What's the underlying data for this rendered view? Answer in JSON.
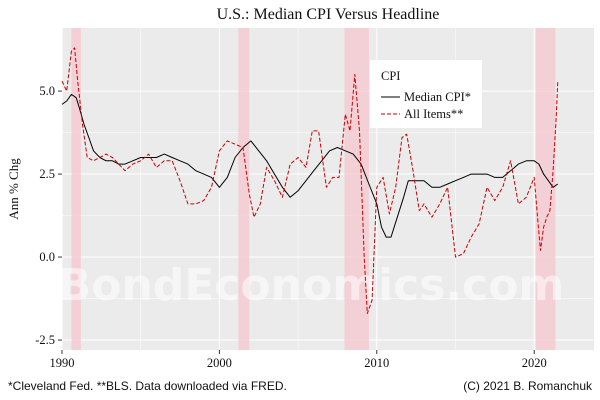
{
  "chart_data": {
    "type": "line",
    "title": "U.S.: Median CPI Versus Headline",
    "ylabel": "Ann % Chg",
    "xlabel": "",
    "xlim": [
      1990.0,
      2023.8
    ],
    "ylim": [
      -2.8,
      6.9
    ],
    "x_ticks": [
      1990,
      2000,
      2010,
      2020
    ],
    "x_tick_labels": [
      "1990",
      "2000",
      "2010",
      "2020"
    ],
    "y_ticks": [
      -2.5,
      0.0,
      2.5,
      5.0
    ],
    "y_tick_labels": [
      "-2.5",
      "0.0",
      "2.5",
      "5.0"
    ],
    "grid": true,
    "legend": {
      "title": "CPI",
      "position": "top-right",
      "entries": [
        {
          "label": "Median CPI*",
          "series": 0
        },
        {
          "label": "All Items**",
          "series": 1
        }
      ]
    },
    "recessions": [
      [
        1990.6,
        1991.2
      ],
      [
        2001.2,
        2001.9
      ],
      [
        2007.95,
        2009.5
      ],
      [
        2020.1,
        2021.35
      ]
    ],
    "series": [
      {
        "name": "Median CPI*",
        "color": "#000000",
        "dash": "solid",
        "x": [
          1990.0,
          1990.3,
          1990.6,
          1990.9,
          1991.1,
          1991.4,
          1991.7,
          1992.0,
          1992.4,
          1992.8,
          1993.2,
          1993.6,
          1994.0,
          1994.5,
          1995.0,
          1995.5,
          1996.0,
          1996.5,
          1997.0,
          1997.5,
          1998.0,
          1998.5,
          1999.0,
          1999.5,
          2000.0,
          2000.5,
          2001.0,
          2001.5,
          2002.0,
          2002.5,
          2003.0,
          2003.5,
          2004.0,
          2004.5,
          2005.0,
          2005.5,
          2006.0,
          2006.5,
          2007.0,
          2007.5,
          2008.0,
          2008.5,
          2009.0,
          2009.5,
          2010.0,
          2010.3,
          2010.6,
          2010.9,
          2011.3,
          2011.7,
          2012.0,
          2012.5,
          2013.0,
          2013.5,
          2014.0,
          2014.5,
          2015.0,
          2015.5,
          2016.0,
          2016.5,
          2017.0,
          2017.5,
          2018.0,
          2018.5,
          2019.0,
          2019.5,
          2020.0,
          2020.3,
          2020.6,
          2020.9,
          2021.2,
          2021.5
        ],
        "y": [
          4.6,
          4.7,
          4.9,
          4.8,
          4.5,
          4.0,
          3.6,
          3.2,
          3.0,
          2.9,
          2.9,
          2.8,
          2.8,
          2.9,
          3.0,
          3.0,
          3.0,
          3.1,
          3.0,
          2.9,
          2.8,
          2.6,
          2.5,
          2.4,
          2.1,
          2.4,
          3.0,
          3.3,
          3.5,
          3.2,
          2.9,
          2.5,
          2.1,
          1.8,
          2.0,
          2.3,
          2.6,
          2.9,
          3.2,
          3.3,
          3.2,
          3.1,
          2.8,
          2.2,
          1.6,
          0.9,
          0.6,
          0.6,
          1.2,
          1.8,
          2.3,
          2.3,
          2.3,
          2.1,
          2.1,
          2.2,
          2.3,
          2.4,
          2.5,
          2.5,
          2.5,
          2.4,
          2.4,
          2.6,
          2.8,
          2.9,
          2.9,
          2.8,
          2.5,
          2.3,
          2.1,
          2.2
        ]
      },
      {
        "name": "All Items**",
        "color": "#cc0000",
        "dash": "dashed",
        "x": [
          1990.0,
          1990.3,
          1990.6,
          1990.8,
          1991.0,
          1991.3,
          1991.6,
          1992.0,
          1992.4,
          1992.8,
          1993.2,
          1993.6,
          1994.0,
          1994.5,
          1995.0,
          1995.5,
          1996.0,
          1996.5,
          1997.0,
          1997.5,
          1998.0,
          1998.5,
          1999.0,
          1999.5,
          2000.0,
          2000.5,
          2001.0,
          2001.5,
          2001.9,
          2002.2,
          2002.6,
          2003.0,
          2003.5,
          2004.0,
          2004.5,
          2005.0,
          2005.5,
          2005.9,
          2006.3,
          2006.8,
          2007.2,
          2007.6,
          2008.0,
          2008.3,
          2008.6,
          2008.9,
          2009.2,
          2009.4,
          2009.7,
          2010.0,
          2010.4,
          2010.8,
          2011.2,
          2011.6,
          2011.9,
          2012.3,
          2012.7,
          2013.0,
          2013.5,
          2014.0,
          2014.5,
          2015.0,
          2015.5,
          2016.0,
          2016.5,
          2017.0,
          2017.5,
          2018.0,
          2018.5,
          2019.0,
          2019.5,
          2020.0,
          2020.25,
          2020.4,
          2020.6,
          2020.8,
          2021.0,
          2021.2,
          2021.4,
          2021.5
        ],
        "y": [
          5.3,
          5.0,
          6.2,
          6.3,
          5.3,
          4.0,
          3.0,
          2.9,
          3.0,
          3.1,
          3.0,
          2.8,
          2.6,
          2.8,
          2.9,
          3.1,
          2.7,
          2.9,
          2.9,
          2.3,
          1.6,
          1.6,
          1.7,
          2.1,
          3.2,
          3.5,
          3.4,
          3.3,
          1.9,
          1.2,
          1.6,
          2.7,
          2.3,
          1.8,
          2.8,
          3.0,
          2.7,
          3.8,
          3.8,
          2.1,
          2.4,
          2.4,
          4.3,
          3.8,
          5.5,
          3.8,
          0.0,
          -1.7,
          -1.3,
          2.1,
          2.4,
          1.3,
          2.1,
          3.6,
          3.7,
          2.6,
          1.4,
          1.6,
          1.2,
          1.6,
          2.1,
          0.0,
          0.1,
          0.6,
          1.0,
          2.1,
          1.7,
          2.1,
          2.9,
          1.6,
          1.8,
          2.4,
          1.0,
          0.2,
          0.9,
          1.2,
          1.4,
          2.6,
          4.2,
          5.3
        ]
      }
    ]
  },
  "watermark": "BondEconomics.com",
  "footer": {
    "left": "*Cleveland Fed. **BLS. Data downloaded via FRED.",
    "right": "(C) 2021 B. Romanchuk"
  }
}
